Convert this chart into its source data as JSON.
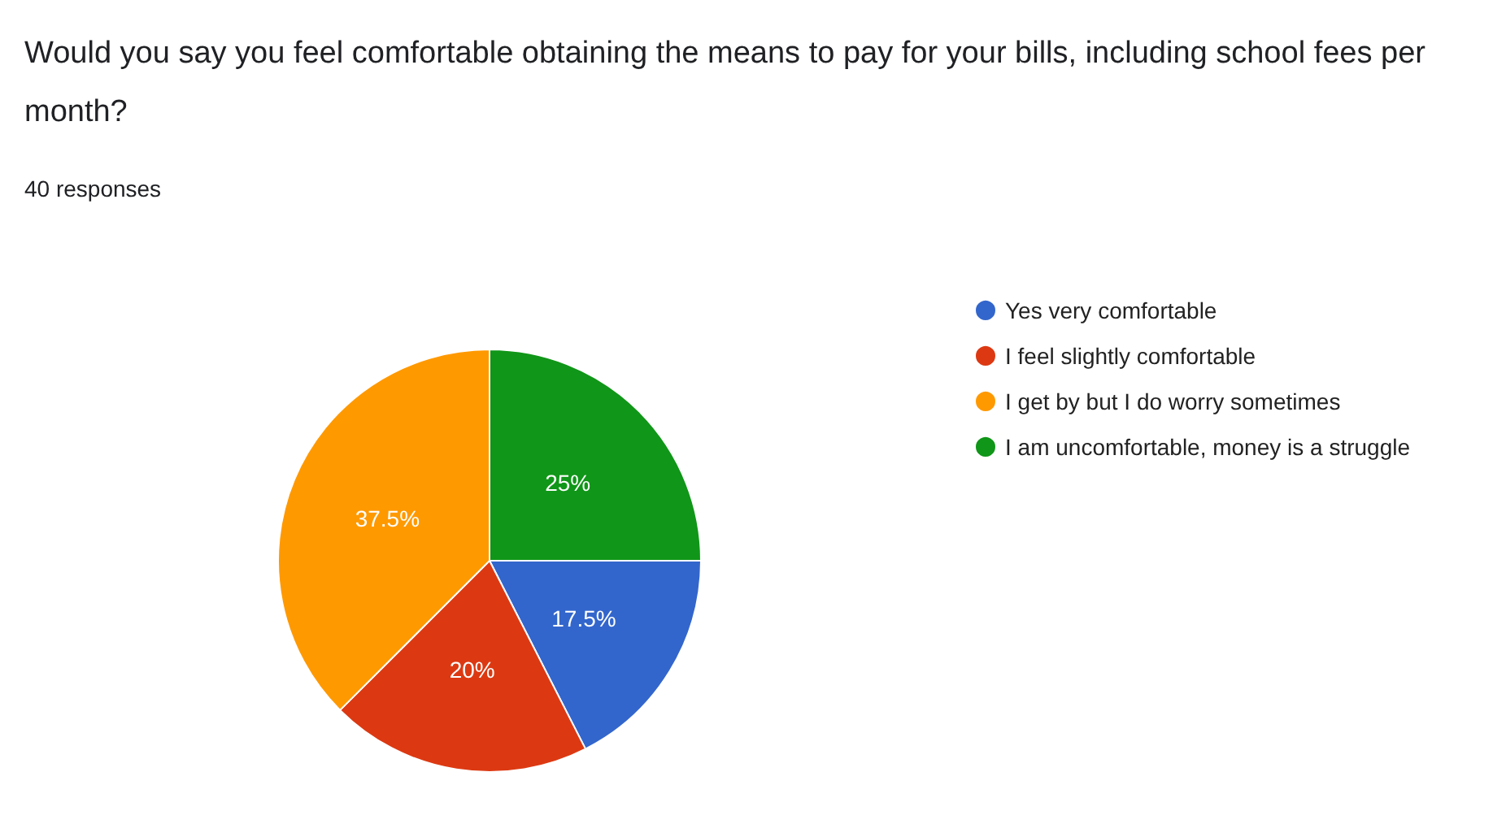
{
  "chart_data": {
    "type": "pie",
    "title": "Would you say you feel comfortable obtaining the means to pay for your bills, including school fees per month?",
    "subtitle": "40 responses",
    "categories": [
      "Yes very comfortable",
      "I feel slightly comfortable",
      "I get by but I do worry sometimes",
      "I am uncomfortable, money is a struggle"
    ],
    "values": [
      17.5,
      20,
      37.5,
      25
    ],
    "colors": [
      "#3366cc",
      "#dc3912",
      "#ff9900",
      "#109618"
    ],
    "value_labels": [
      "17.5%",
      "20%",
      "37.5%",
      "25%"
    ],
    "legend": "right"
  }
}
